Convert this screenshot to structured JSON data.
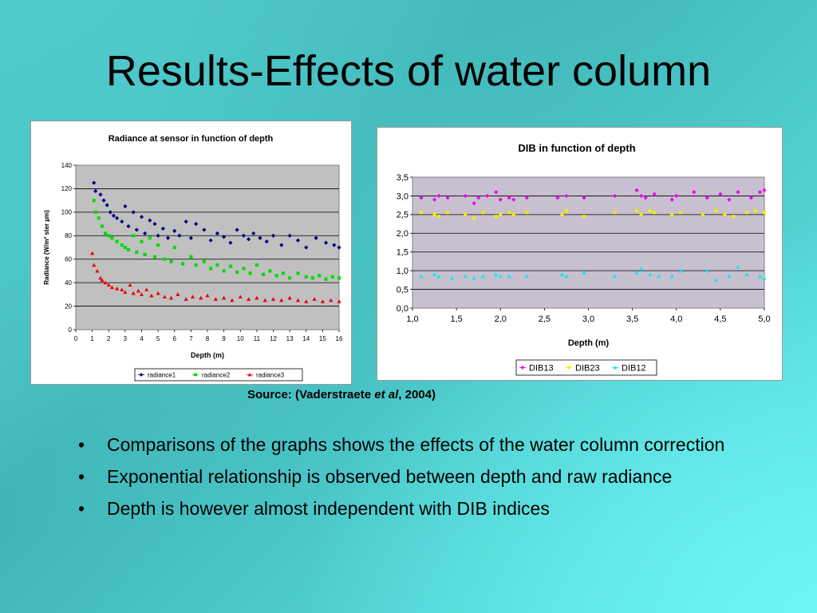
{
  "slide": {
    "title": "Results-Effects of water column",
    "source": {
      "prefix": "Source: (Vaderstraete ",
      "italic": "et al",
      "suffix": ", 2004)"
    },
    "bullets": [
      "Comparisons of the graphs shows the effects of the water column correction",
      "Exponential relationship is observed between depth and raw radiance",
      "Depth is however almost independent with DIB indices"
    ],
    "bullet_glyph": "•"
  },
  "chart_data": [
    {
      "type": "scatter",
      "title": "Radiance at sensor in function of depth",
      "xlabel": "Depth (m)",
      "ylabel": "Radiance (W/m² ster µm)",
      "xlim": [
        0,
        16
      ],
      "ylim": [
        0,
        140
      ],
      "xticks": [
        "0",
        "1",
        "2",
        "3",
        "4",
        "5",
        "6",
        "7",
        "8",
        "9",
        "10",
        "11",
        "12",
        "13",
        "14",
        "15",
        "16"
      ],
      "yticks": [
        "0",
        "20",
        "40",
        "60",
        "80",
        "100",
        "120",
        "140"
      ],
      "grid": true,
      "legend": "bottom",
      "plot_background": "#c0c0c0",
      "series": [
        {
          "name": "radiance1",
          "marker": "diamond",
          "color": "#000080",
          "x": [
            1.1,
            1.2,
            1.5,
            1.7,
            1.9,
            2.1,
            2.3,
            2.5,
            2.8,
            3.0,
            3.2,
            3.5,
            3.7,
            4.0,
            4.2,
            4.5,
            4.8,
            5.0,
            5.3,
            5.6,
            6.0,
            6.3,
            6.7,
            7.0,
            7.3,
            7.8,
            8.2,
            8.6,
            9.0,
            9.4,
            9.8,
            10.2,
            10.5,
            10.8,
            11.2,
            11.6,
            12.0,
            12.5,
            13.0,
            13.5,
            14.0,
            14.6,
            15.2,
            15.7,
            16.0
          ],
          "y": [
            125,
            118,
            115,
            110,
            106,
            100,
            97,
            95,
            92,
            105,
            88,
            100,
            85,
            96,
            82,
            93,
            90,
            80,
            86,
            78,
            84,
            80,
            92,
            78,
            90,
            85,
            76,
            82,
            79,
            74,
            85,
            80,
            77,
            82,
            78,
            75,
            80,
            72,
            80,
            76,
            70,
            78,
            74,
            72,
            70
          ]
        },
        {
          "name": "radiance2",
          "marker": "square",
          "color": "#00dd00",
          "x": [
            1.1,
            1.2,
            1.4,
            1.6,
            1.8,
            2.0,
            2.2,
            2.5,
            2.8,
            3.0,
            3.2,
            3.5,
            3.7,
            4.0,
            4.2,
            4.5,
            4.8,
            5.0,
            5.4,
            5.8,
            6.0,
            6.5,
            7.0,
            7.3,
            7.8,
            8.2,
            8.6,
            9.0,
            9.4,
            9.8,
            10.2,
            10.6,
            11.0,
            11.4,
            11.8,
            12.2,
            12.6,
            13.0,
            13.5,
            14.0,
            14.4,
            14.8,
            15.2,
            15.6,
            16.0
          ],
          "y": [
            110,
            100,
            95,
            88,
            82,
            80,
            78,
            75,
            72,
            70,
            68,
            80,
            66,
            75,
            64,
            78,
            62,
            72,
            60,
            58,
            70,
            56,
            62,
            55,
            58,
            52,
            55,
            50,
            54,
            49,
            52,
            48,
            55,
            47,
            50,
            46,
            48,
            44,
            48,
            45,
            44,
            46,
            43,
            45,
            44
          ]
        },
        {
          "name": "radiance3",
          "marker": "triangle",
          "color": "#ee0000",
          "x": [
            1.0,
            1.1,
            1.3,
            1.5,
            1.6,
            1.8,
            2.0,
            2.2,
            2.5,
            2.8,
            3.0,
            3.3,
            3.5,
            3.8,
            4.0,
            4.3,
            4.6,
            5.0,
            5.4,
            5.8,
            6.2,
            6.7,
            7.1,
            7.6,
            8.0,
            8.5,
            9.0,
            9.5,
            10.0,
            10.5,
            11.0,
            11.5,
            12.0,
            12.5,
            13.0,
            13.5,
            14.0,
            14.5,
            15.0,
            15.5,
            16.0
          ],
          "y": [
            65,
            55,
            50,
            44,
            42,
            40,
            38,
            36,
            35,
            34,
            32,
            38,
            31,
            33,
            30,
            34,
            29,
            31,
            28,
            27,
            30,
            26,
            28,
            27,
            29,
            26,
            27,
            25,
            28,
            26,
            27,
            25,
            26,
            25,
            27,
            25,
            24,
            26,
            24,
            25,
            24
          ]
        }
      ]
    },
    {
      "type": "scatter",
      "title": "DIB in function of depth",
      "xlabel": "Depth (m)",
      "ylabel": "",
      "xlim": [
        1.0,
        5.0
      ],
      "ylim": [
        0.0,
        3.5
      ],
      "xticks": [
        "1,0",
        "1,5",
        "2,0",
        "2,5",
        "3,0",
        "3,5",
        "4,0",
        "4,5",
        "5,0"
      ],
      "yticks": [
        "0,0",
        "0,5",
        "1,0",
        "1,5",
        "2,0",
        "2,5",
        "3,0",
        "3,5"
      ],
      "grid": true,
      "legend": "bottom",
      "plot_background": "#c8bfd0",
      "series": [
        {
          "name": "DIB13",
          "marker": "diamond",
          "color": "#ee00ee",
          "x": [
            1.1,
            1.25,
            1.3,
            1.4,
            1.6,
            1.7,
            1.75,
            1.85,
            1.95,
            2.0,
            2.1,
            2.15,
            2.3,
            2.65,
            2.75,
            2.95,
            3.3,
            3.55,
            3.6,
            3.65,
            3.75,
            3.95,
            4.0,
            4.2,
            4.35,
            4.5,
            4.6,
            4.7,
            4.85,
            4.95,
            5.0
          ],
          "y": [
            2.95,
            2.9,
            3.0,
            2.95,
            3.0,
            2.8,
            2.95,
            3.0,
            3.1,
            2.9,
            2.95,
            2.9,
            2.95,
            2.95,
            3.0,
            2.95,
            3.0,
            3.15,
            3.0,
            2.95,
            3.05,
            2.9,
            3.0,
            3.1,
            2.95,
            3.05,
            2.9,
            3.1,
            2.95,
            3.1,
            3.15
          ]
        },
        {
          "name": "DIB23",
          "marker": "square",
          "color": "#f0f000",
          "x": [
            1.1,
            1.25,
            1.3,
            1.4,
            1.6,
            1.7,
            1.8,
            1.95,
            2.0,
            2.1,
            2.15,
            2.3,
            2.7,
            2.75,
            2.95,
            3.3,
            3.55,
            3.6,
            3.7,
            3.75,
            3.95,
            4.05,
            4.3,
            4.45,
            4.55,
            4.65,
            4.8,
            4.9,
            5.0
          ],
          "y": [
            2.55,
            2.5,
            2.45,
            2.55,
            2.5,
            2.4,
            2.55,
            2.45,
            2.5,
            2.55,
            2.5,
            2.55,
            2.5,
            2.6,
            2.45,
            2.55,
            2.6,
            2.5,
            2.6,
            2.55,
            2.5,
            2.55,
            2.5,
            2.6,
            2.5,
            2.45,
            2.55,
            2.6,
            2.55
          ]
        },
        {
          "name": "DIB12",
          "marker": "triangle",
          "color": "#00eeee",
          "x": [
            1.1,
            1.25,
            1.3,
            1.45,
            1.6,
            1.7,
            1.8,
            1.95,
            2.0,
            2.1,
            2.3,
            2.7,
            2.75,
            2.95,
            3.3,
            3.55,
            3.6,
            3.7,
            3.8,
            3.95,
            4.05,
            4.35,
            4.45,
            4.6,
            4.7,
            4.8,
            4.95,
            5.0
          ],
          "y": [
            0.85,
            0.9,
            0.85,
            0.8,
            0.85,
            0.8,
            0.85,
            0.9,
            0.85,
            0.85,
            0.85,
            0.9,
            0.85,
            0.95,
            0.85,
            0.95,
            1.05,
            0.9,
            0.85,
            0.85,
            1.0,
            1.0,
            0.75,
            0.85,
            1.1,
            0.9,
            0.85,
            0.8
          ]
        }
      ]
    }
  ]
}
